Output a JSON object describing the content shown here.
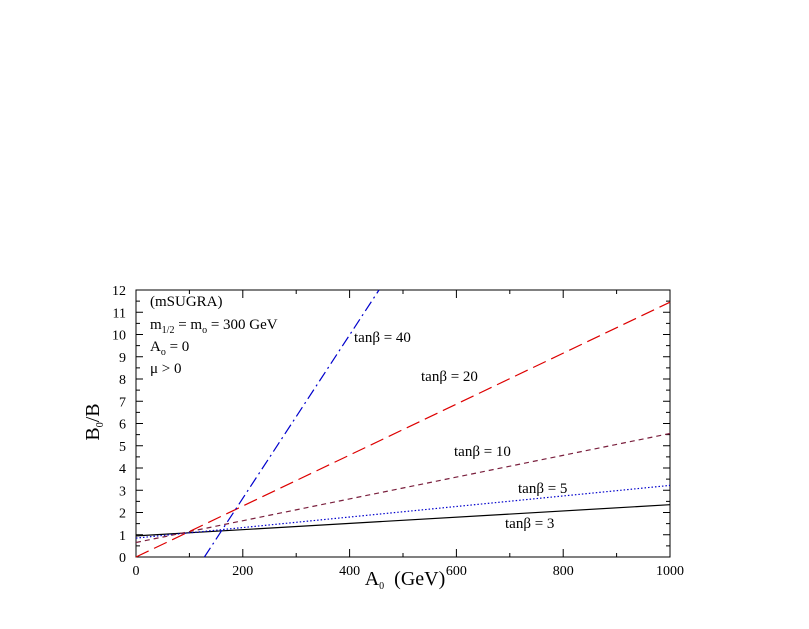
{
  "chart_data": {
    "type": "line",
    "title": "",
    "xlabel": "A",
    "xlabel_sub": "0",
    "xlabel_unit": "(GeV)",
    "ylabel": "B",
    "ylabel_sub": "0",
    "ylabel_rest": "/B",
    "xlim": [
      0,
      1000
    ],
    "ylim": [
      0,
      12
    ],
    "xticks": [
      0,
      200,
      400,
      600,
      800,
      1000
    ],
    "yticks": [
      0,
      1,
      2,
      3,
      4,
      5,
      6,
      7,
      8,
      9,
      10,
      11,
      12
    ],
    "grid": false,
    "annotations": {
      "line1": "(mSUGRA)",
      "line2_m": "m",
      "line2_sub1": "1/2",
      "line2_mid": " = m",
      "line2_sub2": "o",
      "line2_end": " = 300 GeV",
      "line3_a": "A",
      "line3_sub": "o",
      "line3_end": " = 0",
      "line4": "μ > 0"
    },
    "series": [
      {
        "label": "tanβ = 3",
        "color": "#000000",
        "dash": "solid",
        "x": [
          0,
          1000
        ],
        "y": [
          0.95,
          2.35
        ]
      },
      {
        "label": "tanβ = 5",
        "color": "#0000cc",
        "dash": "dotted",
        "x": [
          0,
          1000
        ],
        "y": [
          0.85,
          3.22
        ]
      },
      {
        "label": "tanβ = 10",
        "color": "#7a1f3d",
        "dash": "shortdash",
        "x": [
          0,
          1000
        ],
        "y": [
          0.65,
          5.55
        ]
      },
      {
        "label": "tanβ = 20",
        "color": "#dd0000",
        "dash": "longdash",
        "x": [
          0,
          1000
        ],
        "y": [
          0.0,
          11.45
        ]
      },
      {
        "label": "tanβ = 40",
        "color": "#0000cc",
        "dash": "dashdot",
        "x": [
          128,
          455
        ],
        "y": [
          0.0,
          12.0
        ]
      }
    ]
  }
}
